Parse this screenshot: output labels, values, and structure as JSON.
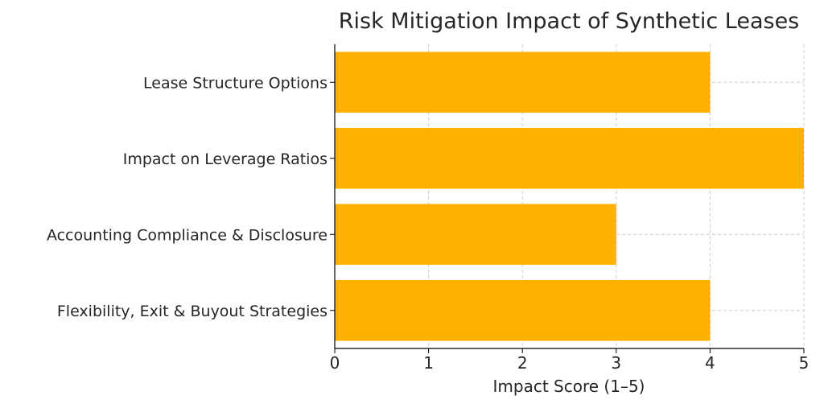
{
  "chart_data": {
    "type": "bar",
    "orientation": "horizontal",
    "title": "Risk Mitigation Impact of Synthetic Leases",
    "xlabel": "Impact Score (1–5)",
    "ylabel": "",
    "categories": [
      "Lease Structure Options",
      "Impact on Leverage Ratios",
      "Accounting Compliance & Disclosure",
      "Flexibility, Exit & Buyout Strategies"
    ],
    "values": [
      4,
      5,
      3,
      4
    ],
    "xlim": [
      0,
      5
    ],
    "xticks": [
      "0",
      "1",
      "2",
      "3",
      "4",
      "5"
    ],
    "grid": true,
    "bar_color": "#FFB000"
  }
}
